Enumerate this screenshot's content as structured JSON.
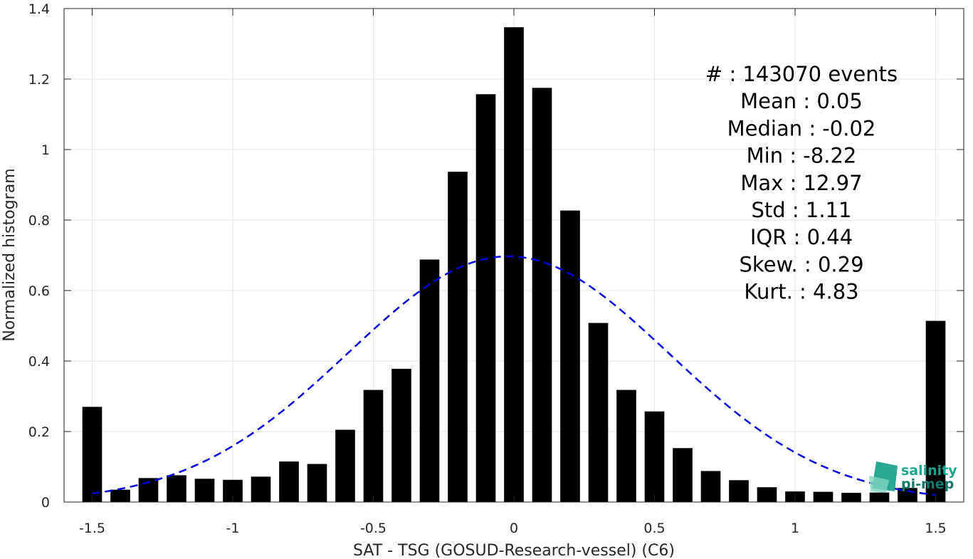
{
  "chart_data": {
    "type": "bar",
    "xlabel": "SAT - TSG (GOSUD-Research-vessel) (C6)",
    "ylabel": "Normalized histogram",
    "xlim": [
      -1.6,
      1.6
    ],
    "ylim": [
      0,
      1.4
    ],
    "grid": true,
    "bar_width": 0.07,
    "x_ticks": [
      -1.5,
      -1,
      -0.5,
      0,
      0.5,
      1,
      1.5
    ],
    "x_tick_labels": [
      "-1.5",
      "-1",
      "-0.5",
      "0",
      "0.5",
      "1",
      "1.5"
    ],
    "y_ticks": [
      0,
      0.2,
      0.4,
      0.6,
      0.8,
      1,
      1.2,
      1.4
    ],
    "y_tick_labels": [
      "0",
      "0.2",
      "0.4",
      "0.6",
      "0.8",
      "1",
      "1.2",
      "1.4"
    ],
    "bars": {
      "x": [
        -1.5,
        -1.4,
        -1.3,
        -1.2,
        -1.1,
        -1.0,
        -0.9,
        -0.8,
        -0.7,
        -0.6,
        -0.5,
        -0.4,
        -0.3,
        -0.2,
        -0.1,
        0.0,
        0.1,
        0.2,
        0.3,
        0.4,
        0.5,
        0.6,
        0.7,
        0.8,
        0.9,
        1.0,
        1.1,
        1.2,
        1.3,
        1.4,
        1.5
      ],
      "values": [
        0.27,
        0.035,
        0.068,
        0.076,
        0.066,
        0.063,
        0.072,
        0.115,
        0.108,
        0.205,
        0.318,
        0.378,
        0.688,
        0.937,
        1.157,
        1.347,
        1.175,
        0.827,
        0.508,
        0.318,
        0.257,
        0.153,
        0.088,
        0.062,
        0.042,
        0.03,
        0.029,
        0.026,
        0.027,
        0.04,
        0.514
      ],
      "color": "#000000"
    },
    "fit_curve": {
      "style": "dashed",
      "color": "#0000e0",
      "mean": -0.02,
      "std": 0.57,
      "peak": 0.697,
      "x_range": [
        -1.5,
        1.5
      ]
    },
    "stats": [
      {
        "label": "#  ",
        "sep": ": ",
        "value": "143070 events"
      },
      {
        "label": "Mean",
        "sep": " : ",
        "value": "0.05"
      },
      {
        "label": "Median",
        "sep": " : ",
        "value": "-0.02"
      },
      {
        "label": "Min",
        "sep": " : ",
        "value": "-8.22"
      },
      {
        "label": "Max",
        "sep": " : ",
        "value": "12.97"
      },
      {
        "label": "Std",
        "sep": " : ",
        "value": "1.11"
      },
      {
        "label": "IQR",
        "sep": " : ",
        "value": "0.44"
      },
      {
        "label": "Skew.",
        "sep": " : ",
        "value": "0.29"
      },
      {
        "label": "Kurt.",
        "sep": " : ",
        "value": "4.83"
      }
    ]
  },
  "logo": {
    "line1": "salinity",
    "line2": "pi-mep",
    "text_color": "#1aa58c",
    "text_color_dark": "#11786a",
    "mark_color": "#20a38b",
    "mark_color_light": "#7fd4c0"
  }
}
